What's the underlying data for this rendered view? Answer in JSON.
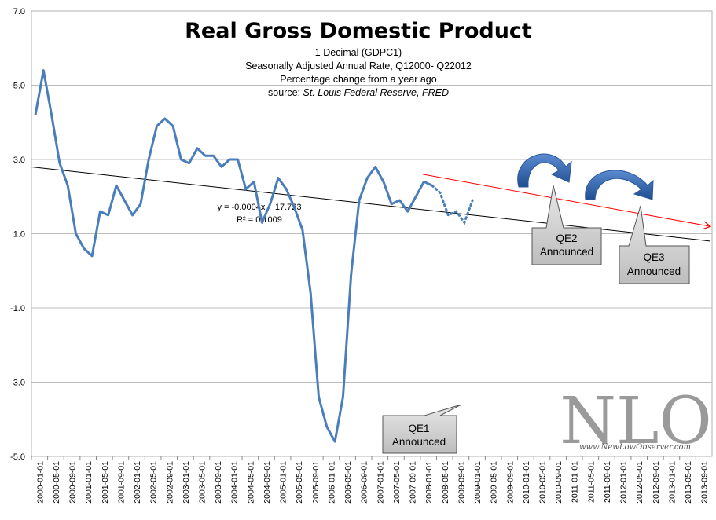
{
  "chart_data": {
    "type": "line",
    "title": "Real Gross Domestic Product",
    "subtitle_lines": [
      "1 Decimal (GDPC1)",
      "Seasonally Adjusted Annual Rate, Q12000- Q22012",
      "Percentage change from a year ago"
    ],
    "source_label": "source: ",
    "source_value": "St. Louis Federal Reserve, FRED",
    "ylim": [
      -5.0,
      7.0
    ],
    "y_ticks": [
      "-5.0",
      "-3.0",
      "-1.0",
      "1.0",
      "3.0",
      "5.0",
      "7.0"
    ],
    "y_tick_values": [
      -5,
      -3,
      -1,
      1,
      3,
      5,
      7
    ],
    "x_tick_labels": [
      "2000-01-01",
      "2000-05-01",
      "2000-09-01",
      "2001-01-01",
      "2001-05-01",
      "2001-09-01",
      "2002-01-01",
      "2002-05-01",
      "2002-09-01",
      "2003-01-01",
      "2003-05-01",
      "2003-09-01",
      "2004-01-01",
      "2004-05-01",
      "2004-09-01",
      "2005-01-01",
      "2005-05-01",
      "2005-09-01",
      "2006-01-01",
      "2006-05-01",
      "2006-09-01",
      "2007-01-01",
      "2007-05-01",
      "2007-09-01",
      "2008-01-01",
      "2008-05-01",
      "2008-09-01",
      "2009-01-01",
      "2009-05-01",
      "2009-09-01",
      "2010-01-01",
      "2010-05-01",
      "2010-09-01",
      "2011-01-01",
      "2011-05-01",
      "2011-09-01",
      "2012-01-01",
      "2012-05-01",
      "2012-09-01",
      "2013-01-01",
      "2013-05-01",
      "2013-09-01"
    ],
    "series": [
      {
        "name": "Real GDP % change from year ago",
        "values": [
          4.2,
          5.4,
          4.2,
          2.9,
          2.3,
          1.0,
          0.6,
          0.4,
          1.6,
          1.5,
          2.3,
          1.9,
          1.5,
          1.8,
          3.0,
          3.9,
          4.1,
          3.9,
          3.0,
          2.9,
          3.3,
          3.1,
          3.1,
          2.8,
          3.0,
          3.0,
          2.2,
          2.4,
          1.3,
          1.8,
          2.5,
          2.2,
          1.7,
          1.1,
          -0.6,
          -3.4,
          -4.2,
          -4.6,
          -3.4,
          -0.1,
          1.9,
          2.5,
          2.8,
          2.4,
          1.8,
          1.9,
          1.6,
          2.0,
          2.4,
          2.3
        ]
      },
      {
        "name": "Projection",
        "style": "dotted",
        "start_index": 49,
        "values": [
          2.3,
          2.1,
          1.5,
          1.6,
          1.3,
          1.9
        ]
      }
    ],
    "trendline": {
      "equation": "y = -0.0004x + 17.723",
      "r_squared": "R² = 0.1009",
      "start": 2.8,
      "end": 0.8
    },
    "red_trend": {
      "start": 2.6,
      "end": 1.2
    },
    "annotations": [
      {
        "id": "qe1",
        "line1": "QE1",
        "line2": "Announced",
        "point_index": 35
      },
      {
        "id": "qe2",
        "line1": "QE2",
        "line2": "Announced",
        "point_index": 43
      },
      {
        "id": "qe3",
        "line1": "QE3",
        "line2": "Announced",
        "point_index": 49
      }
    ],
    "watermark": {
      "text": "NLO",
      "url": "www.NewLowObserver.com"
    }
  }
}
